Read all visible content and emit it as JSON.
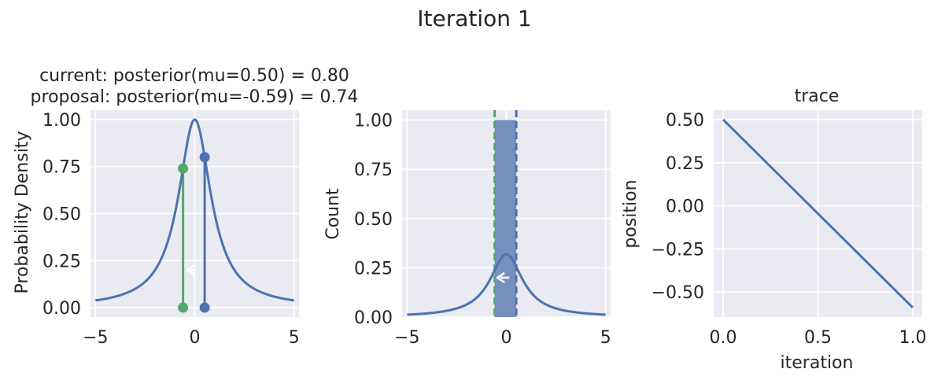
{
  "figure": {
    "title": "Iteration 1"
  },
  "colors": {
    "blue": "#4c72b0",
    "green": "#55a868",
    "axes_bg": "#eaeaf2",
    "grid": "#ffffff",
    "text": "#262626",
    "hist_fill": "#7590bd"
  },
  "chart_data": [
    {
      "type": "line",
      "panel": "posterior",
      "title": "current: posterior(mu=0.50) = 0.80\nproposal: posterior(mu=-0.59) = 0.74",
      "title_lines": [
        "current: posterior(mu=0.50) = 0.80",
        "proposal: posterior(mu=-0.59) = 0.74"
      ],
      "xlabel": "",
      "ylabel": "Probability Density",
      "xlim": [
        -5.25,
        5.25
      ],
      "ylim": [
        -0.05,
        1.05
      ],
      "xticks": [
        -5,
        0,
        5
      ],
      "xtick_labels": [
        "−5",
        "0",
        "5"
      ],
      "yticks": [
        0.0,
        0.25,
        0.5,
        0.75,
        1.0
      ],
      "ytick_labels": [
        "0.00",
        "0.25",
        "0.50",
        "0.75",
        "1.00"
      ],
      "series": [
        {
          "name": "posterior",
          "function": "1/(1+x^2)",
          "x_range": [
            -5,
            5
          ],
          "color": "blue"
        }
      ],
      "markers": [
        {
          "name": "current",
          "x": 0.5,
          "y": 0.8,
          "color": "blue"
        },
        {
          "name": "proposal",
          "x": -0.59,
          "y": 0.74,
          "color": "green"
        }
      ],
      "arrow": {
        "from_x": 0.0,
        "to_x": -0.35,
        "y": 0.2,
        "color": "#ffffff",
        "direction": "left"
      },
      "grid": true
    },
    {
      "type": "bar",
      "panel": "histogram",
      "title": "",
      "xlabel": "",
      "ylabel": "Count",
      "xlim": [
        -5.25,
        5.25
      ],
      "ylim": [
        0,
        1.05
      ],
      "xticks": [
        -5,
        0,
        5
      ],
      "xtick_labels": [
        "−5",
        "0",
        "5"
      ],
      "yticks": [
        0.0,
        0.25,
        0.5,
        0.75,
        1.0
      ],
      "ytick_labels": [
        "0.00",
        "0.25",
        "0.50",
        "0.75",
        "1.00"
      ],
      "bars": [
        {
          "x0": -0.59,
          "x1": 0.5,
          "value": 1.0
        }
      ],
      "series": [
        {
          "name": "posterior (scaled)",
          "function": "(1/pi)/(1+x^2)",
          "x_range": [
            -5,
            5
          ],
          "color": "blue"
        }
      ],
      "vlines": [
        {
          "x": -0.59,
          "style": "dashed",
          "color": "green"
        },
        {
          "x": 0.5,
          "style": "dashed",
          "color": "blue"
        }
      ],
      "arrow": {
        "from_x": 0.15,
        "to_x": -0.45,
        "y": 0.2,
        "color": "#ffffff",
        "direction": "left"
      },
      "grid": true
    },
    {
      "type": "line",
      "panel": "trace",
      "title": "trace",
      "xlabel": "iteration",
      "ylabel": "position",
      "xlim": [
        -0.05,
        1.05
      ],
      "ylim": [
        -0.645,
        0.555
      ],
      "xticks": [
        0.0,
        0.5,
        1.0
      ],
      "xtick_labels": [
        "0.0",
        "0.5",
        "1.0"
      ],
      "yticks": [
        -0.5,
        -0.25,
        0.0,
        0.25,
        0.5
      ],
      "ytick_labels": [
        "−0.50",
        "−0.25",
        "0.00",
        "0.25",
        "0.50"
      ],
      "series": [
        {
          "name": "trace",
          "x": [
            0,
            1
          ],
          "y": [
            0.5,
            -0.59
          ],
          "color": "blue"
        }
      ],
      "grid": true
    }
  ]
}
